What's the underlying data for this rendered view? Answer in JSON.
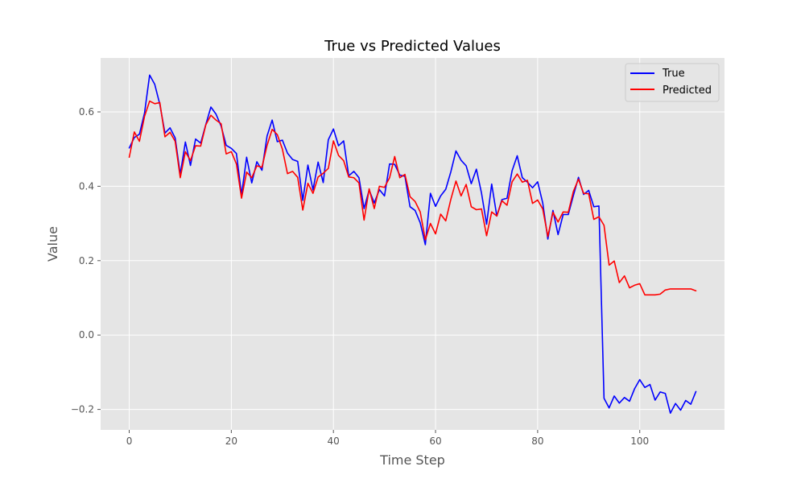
{
  "chart_data": {
    "type": "line",
    "title": "True vs Predicted Values",
    "xlabel": "Time Step",
    "ylabel": "Value",
    "xlim": [
      -5.6,
      116.6
    ],
    "ylim": [
      -0.255,
      0.745
    ],
    "xticks": [
      0,
      20,
      40,
      60,
      80,
      100
    ],
    "yticks": [
      -0.2,
      0.0,
      0.2,
      0.4,
      0.6
    ],
    "xtick_labels": [
      "0",
      "20",
      "40",
      "60",
      "80",
      "100"
    ],
    "ytick_labels": [
      "−0.2",
      "0.0",
      "0.2",
      "0.4",
      "0.6"
    ],
    "grid": true,
    "legend_position": "top-right",
    "series": [
      {
        "name": "True",
        "color": "#0000ff",
        "values": [
          0.503,
          0.531,
          0.54,
          0.597,
          0.699,
          0.674,
          0.62,
          0.543,
          0.557,
          0.53,
          0.432,
          0.519,
          0.456,
          0.527,
          0.516,
          0.566,
          0.613,
          0.594,
          0.562,
          0.51,
          0.502,
          0.488,
          0.377,
          0.478,
          0.409,
          0.466,
          0.443,
          0.535,
          0.578,
          0.52,
          0.524,
          0.489,
          0.472,
          0.467,
          0.362,
          0.457,
          0.39,
          0.465,
          0.41,
          0.525,
          0.554,
          0.509,
          0.522,
          0.428,
          0.44,
          0.423,
          0.34,
          0.39,
          0.355,
          0.391,
          0.374,
          0.46,
          0.459,
          0.43,
          0.427,
          0.345,
          0.335,
          0.302,
          0.243,
          0.381,
          0.346,
          0.374,
          0.392,
          0.439,
          0.495,
          0.47,
          0.455,
          0.407,
          0.446,
          0.382,
          0.298,
          0.406,
          0.32,
          0.364,
          0.368,
          0.442,
          0.482,
          0.423,
          0.411,
          0.396,
          0.412,
          0.355,
          0.258,
          0.335,
          0.27,
          0.324,
          0.324,
          0.375,
          0.424,
          0.378,
          0.389,
          0.345,
          0.347,
          -0.17,
          -0.196,
          -0.164,
          -0.183,
          -0.168,
          -0.178,
          -0.144,
          -0.12,
          -0.141,
          -0.133,
          -0.175,
          -0.153,
          -0.157,
          -0.21,
          -0.184,
          -0.202,
          -0.176,
          -0.186,
          -0.152
        ]
      },
      {
        "name": "Predicted",
        "color": "#ff0000",
        "values": [
          0.478,
          0.546,
          0.521,
          0.588,
          0.629,
          0.622,
          0.625,
          0.533,
          0.545,
          0.521,
          0.423,
          0.493,
          0.469,
          0.509,
          0.508,
          0.565,
          0.591,
          0.578,
          0.568,
          0.487,
          0.493,
          0.46,
          0.368,
          0.438,
          0.423,
          0.455,
          0.451,
          0.51,
          0.553,
          0.539,
          0.5,
          0.434,
          0.44,
          0.424,
          0.336,
          0.408,
          0.381,
          0.425,
          0.435,
          0.448,
          0.522,
          0.483,
          0.469,
          0.425,
          0.423,
          0.409,
          0.309,
          0.393,
          0.34,
          0.4,
          0.397,
          0.423,
          0.48,
          0.423,
          0.432,
          0.372,
          0.359,
          0.331,
          0.256,
          0.3,
          0.272,
          0.325,
          0.307,
          0.365,
          0.414,
          0.374,
          0.405,
          0.345,
          0.337,
          0.339,
          0.267,
          0.331,
          0.32,
          0.361,
          0.349,
          0.412,
          0.433,
          0.411,
          0.416,
          0.354,
          0.363,
          0.339,
          0.265,
          0.33,
          0.304,
          0.331,
          0.33,
          0.386,
          0.419,
          0.381,
          0.38,
          0.311,
          0.318,
          0.295,
          0.188,
          0.199,
          0.141,
          0.159,
          0.127,
          0.134,
          0.138,
          0.108,
          0.108,
          0.108,
          0.11,
          0.121,
          0.124,
          0.124,
          0.124,
          0.124,
          0.124,
          0.119
        ]
      }
    ]
  }
}
